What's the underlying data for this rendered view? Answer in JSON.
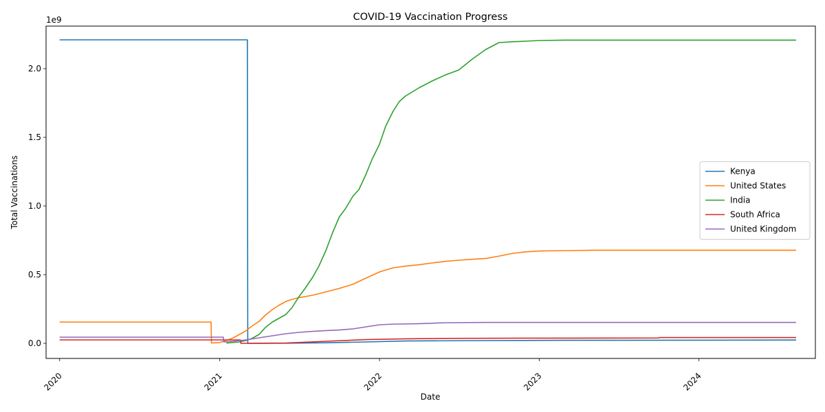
{
  "chart_data": {
    "type": "line",
    "title": "COVID-19 Vaccination Progress",
    "xlabel": "Date",
    "ylabel": "Total Vaccinations",
    "y_offset_label": "1e9",
    "xlim": [
      "2019-12-01",
      "2024-09-23"
    ],
    "ylim": [
      -0.11,
      2.31
    ],
    "x_ticks": [
      {
        "date": "2020-01-01",
        "label": "2020"
      },
      {
        "date": "2021-01-01",
        "label": "2021"
      },
      {
        "date": "2022-01-01",
        "label": "2022"
      },
      {
        "date": "2023-01-01",
        "label": "2023"
      },
      {
        "date": "2024-01-01",
        "label": "2024"
      }
    ],
    "y_ticks": [
      {
        "value": 0.0,
        "label": "0.0"
      },
      {
        "value": 0.5,
        "label": "0.5"
      },
      {
        "value": 1.0,
        "label": "1.0"
      },
      {
        "value": 1.5,
        "label": "1.5"
      },
      {
        "value": 2.0,
        "label": "2.0"
      }
    ],
    "grid": false,
    "legend_position": "center-right",
    "series": [
      {
        "name": "Kenya",
        "color": "#1f77b4",
        "points": [
          [
            "2020-01-01",
            2.21
          ],
          [
            "2021-03-05",
            2.21
          ],
          [
            "2021-03-06",
            0.0
          ],
          [
            "2021-06-01",
            0.001
          ],
          [
            "2021-09-01",
            0.004
          ],
          [
            "2021-12-01",
            0.01
          ],
          [
            "2022-03-01",
            0.017
          ],
          [
            "2022-09-01",
            0.02
          ],
          [
            "2023-03-01",
            0.022
          ],
          [
            "2024-01-01",
            0.023
          ],
          [
            "2024-08-10",
            0.024
          ]
        ]
      },
      {
        "name": "United States",
        "color": "#ff7f0e",
        "points": [
          [
            "2020-01-01",
            0.155
          ],
          [
            "2020-12-12",
            0.155
          ],
          [
            "2020-12-13",
            0.003
          ],
          [
            "2020-12-31",
            0.005
          ],
          [
            "2021-01-15",
            0.02
          ],
          [
            "2021-02-01",
            0.04
          ],
          [
            "2021-02-15",
            0.065
          ],
          [
            "2021-03-01",
            0.09
          ],
          [
            "2021-03-15",
            0.125
          ],
          [
            "2021-04-01",
            0.16
          ],
          [
            "2021-04-15",
            0.205
          ],
          [
            "2021-05-01",
            0.245
          ],
          [
            "2021-05-15",
            0.275
          ],
          [
            "2021-06-01",
            0.305
          ],
          [
            "2021-06-15",
            0.32
          ],
          [
            "2021-07-01",
            0.333
          ],
          [
            "2021-08-01",
            0.35
          ],
          [
            "2021-09-01",
            0.375
          ],
          [
            "2021-10-01",
            0.4
          ],
          [
            "2021-11-01",
            0.43
          ],
          [
            "2021-12-01",
            0.475
          ],
          [
            "2022-01-01",
            0.52
          ],
          [
            "2022-02-01",
            0.55
          ],
          [
            "2022-03-01",
            0.562
          ],
          [
            "2022-04-01",
            0.572
          ],
          [
            "2022-05-01",
            0.585
          ],
          [
            "2022-06-01",
            0.597
          ],
          [
            "2022-07-01",
            0.605
          ],
          [
            "2022-08-01",
            0.612
          ],
          [
            "2022-09-01",
            0.618
          ],
          [
            "2022-10-01",
            0.635
          ],
          [
            "2022-11-01",
            0.655
          ],
          [
            "2022-12-01",
            0.666
          ],
          [
            "2023-01-01",
            0.672
          ],
          [
            "2023-03-01",
            0.675
          ],
          [
            "2023-05-01",
            0.678
          ],
          [
            "2023-09-01",
            0.678
          ],
          [
            "2024-08-10",
            0.678
          ]
        ]
      },
      {
        "name": "India",
        "color": "#2ca02c",
        "points": [
          [
            "2021-01-16",
            0.002
          ],
          [
            "2021-02-15",
            0.01
          ],
          [
            "2021-03-01",
            0.02
          ],
          [
            "2021-03-15",
            0.035
          ],
          [
            "2021-04-01",
            0.065
          ],
          [
            "2021-04-15",
            0.115
          ],
          [
            "2021-05-01",
            0.155
          ],
          [
            "2021-05-15",
            0.18
          ],
          [
            "2021-06-01",
            0.21
          ],
          [
            "2021-06-15",
            0.26
          ],
          [
            "2021-07-01",
            0.34
          ],
          [
            "2021-07-15",
            0.4
          ],
          [
            "2021-08-01",
            0.48
          ],
          [
            "2021-08-15",
            0.56
          ],
          [
            "2021-09-01",
            0.68
          ],
          [
            "2021-09-15",
            0.8
          ],
          [
            "2021-10-01",
            0.92
          ],
          [
            "2021-10-15",
            0.98
          ],
          [
            "2021-11-01",
            1.07
          ],
          [
            "2021-11-15",
            1.12
          ],
          [
            "2021-12-01",
            1.23
          ],
          [
            "2021-12-15",
            1.34
          ],
          [
            "2022-01-01",
            1.45
          ],
          [
            "2022-01-15",
            1.58
          ],
          [
            "2022-02-01",
            1.69
          ],
          [
            "2022-02-15",
            1.76
          ],
          [
            "2022-03-01",
            1.8
          ],
          [
            "2022-04-01",
            1.86
          ],
          [
            "2022-05-01",
            1.91
          ],
          [
            "2022-06-01",
            1.955
          ],
          [
            "2022-07-01",
            1.99
          ],
          [
            "2022-08-01",
            2.07
          ],
          [
            "2022-09-01",
            2.14
          ],
          [
            "2022-10-01",
            2.19
          ],
          [
            "2022-11-01",
            2.196
          ],
          [
            "2022-12-01",
            2.2
          ],
          [
            "2023-01-01",
            2.205
          ],
          [
            "2023-03-01",
            2.208
          ],
          [
            "2024-08-10",
            2.208
          ]
        ]
      },
      {
        "name": "South Africa",
        "color": "#d62728",
        "points": [
          [
            "2020-01-01",
            0.025
          ],
          [
            "2021-02-17",
            0.025
          ],
          [
            "2021-02-18",
            0.0
          ],
          [
            "2021-06-01",
            0.002
          ],
          [
            "2021-09-01",
            0.015
          ],
          [
            "2021-12-01",
            0.027
          ],
          [
            "2022-03-01",
            0.033
          ],
          [
            "2022-06-01",
            0.036
          ],
          [
            "2023-01-01",
            0.038
          ],
          [
            "2023-10-01",
            0.039
          ],
          [
            "2023-10-02",
            0.042
          ],
          [
            "2024-08-10",
            0.042
          ]
        ]
      },
      {
        "name": "United Kingdom",
        "color": "#9467bd",
        "points": [
          [
            "2020-01-01",
            0.045
          ],
          [
            "2021-01-09",
            0.045
          ],
          [
            "2021-01-10",
            0.01
          ],
          [
            "2021-02-01",
            0.015
          ],
          [
            "2021-03-01",
            0.025
          ],
          [
            "2021-04-01",
            0.04
          ],
          [
            "2021-05-01",
            0.055
          ],
          [
            "2021-06-01",
            0.07
          ],
          [
            "2021-07-01",
            0.08
          ],
          [
            "2021-08-01",
            0.087
          ],
          [
            "2021-09-01",
            0.093
          ],
          [
            "2021-10-01",
            0.097
          ],
          [
            "2021-11-01",
            0.105
          ],
          [
            "2021-12-01",
            0.12
          ],
          [
            "2022-01-01",
            0.135
          ],
          [
            "2022-02-01",
            0.14
          ],
          [
            "2022-04-01",
            0.143
          ],
          [
            "2022-06-01",
            0.15
          ],
          [
            "2022-09-01",
            0.152
          ],
          [
            "2024-08-10",
            0.152
          ]
        ]
      }
    ]
  }
}
